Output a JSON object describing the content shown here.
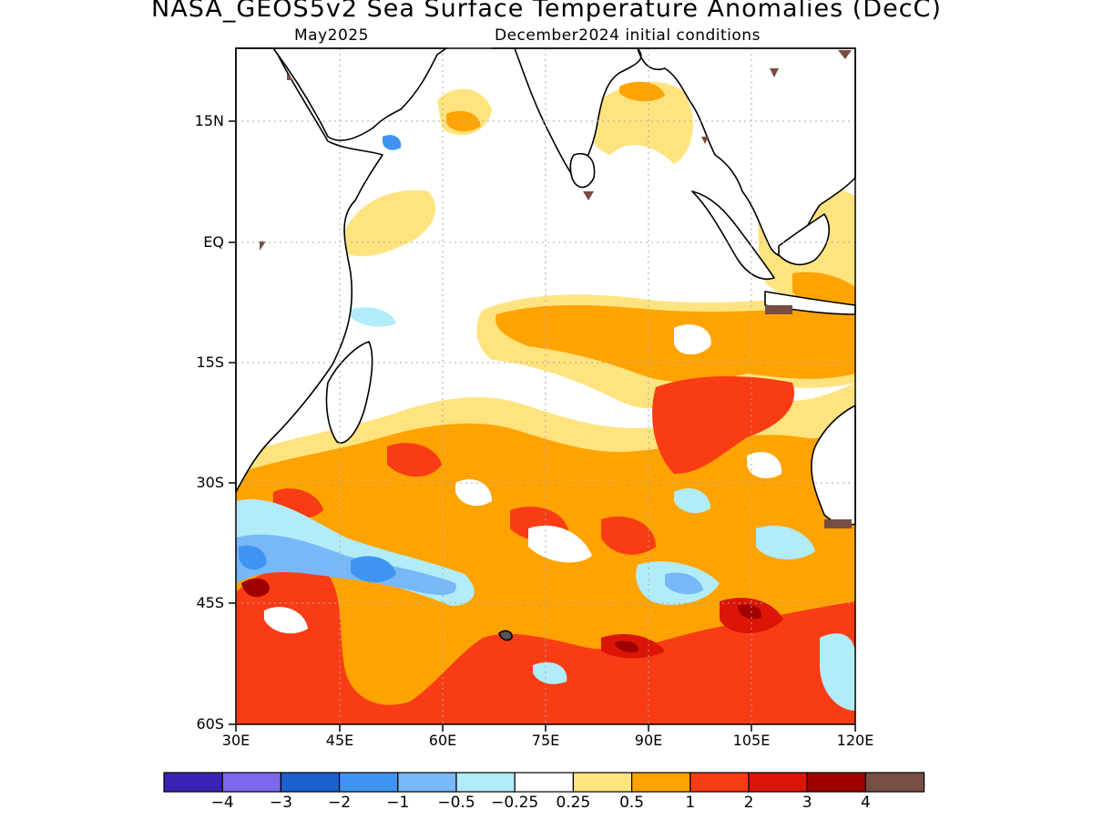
{
  "title": "NASA_GEOS5v2 Sea Surface Temperature Anomalies (DecC)",
  "subtitle_left": "May2025",
  "subtitle_right": "December2024 initial conditions",
  "y_ticks": [
    "15N",
    "EQ",
    "15S",
    "30S",
    "45S",
    "60S"
  ],
  "x_ticks": [
    "30E",
    "45E",
    "60E",
    "75E",
    "90E",
    "105E",
    "120E"
  ],
  "colorbar": {
    "colors": [
      "#3a23b4",
      "#7b68ee",
      "#1e5fd0",
      "#3f94f2",
      "#78b8f8",
      "#b1ecf8",
      "#ffffff",
      "#ffe37e",
      "#ffa300",
      "#fa3c14",
      "#dc1506",
      "#a00000",
      "#784e43"
    ],
    "labels": [
      "−4",
      "−3",
      "−2",
      "−1",
      "−0.5",
      "−0.25",
      "0.25",
      "0.5",
      "1",
      "2",
      "3",
      "4"
    ]
  }
}
